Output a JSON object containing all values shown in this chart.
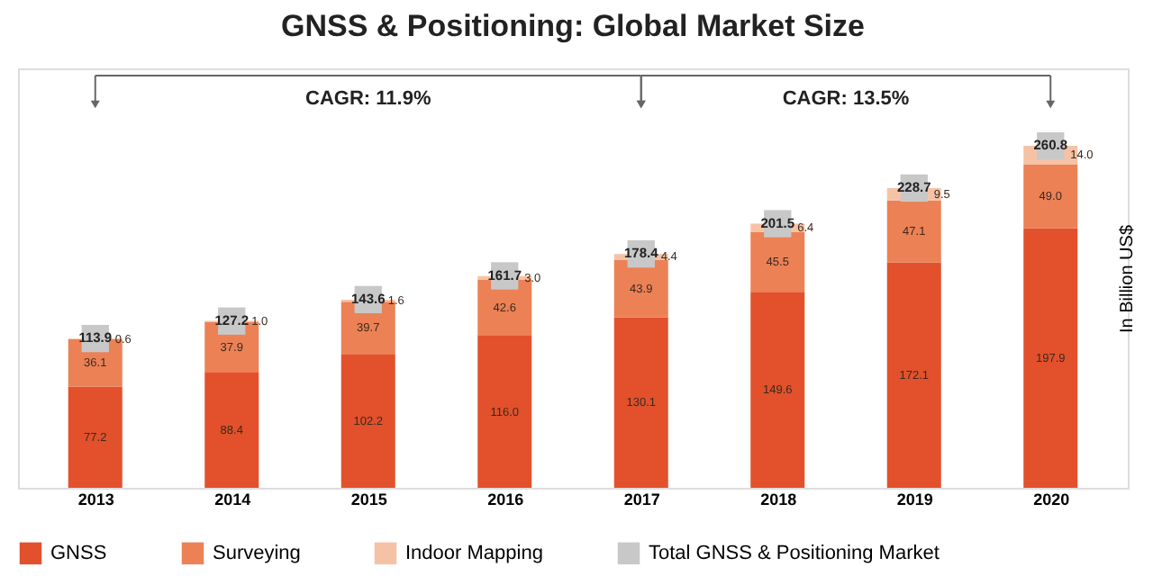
{
  "chart_data": {
    "type": "bar",
    "title": "GNSS & Positioning: Global Market Size",
    "ylabel": "In Billion US$",
    "categories": [
      "2013",
      "2014",
      "2015",
      "2016",
      "2017",
      "2018",
      "2019",
      "2020"
    ],
    "stacked": true,
    "legend": "bottom",
    "tick_labels": "x",
    "ylim": [
      0,
      320
    ],
    "series": [
      {
        "name": "GNSS",
        "color": "#e2512b",
        "values": [
          77.2,
          88.4,
          102.2,
          116.0,
          130.1,
          149.6,
          172.1,
          197.9
        ],
        "value_labels": [
          "77.2",
          "88.4",
          "102.2",
          "116.0",
          "130.1",
          "149.6",
          "172.1",
          "197.9"
        ]
      },
      {
        "name": "Surveying",
        "color": "#ec8155",
        "values": [
          36.1,
          37.9,
          39.7,
          42.6,
          43.9,
          45.5,
          47.1,
          49.0
        ],
        "value_labels": [
          "36.1",
          "37.9",
          "39.7",
          "42.6",
          "43.9",
          "45.5",
          "47.1",
          "49.0"
        ]
      },
      {
        "name": "Indoor Mapping",
        "color": "#f6c2a6",
        "values": [
          0.6,
          1.0,
          1.6,
          3.0,
          4.4,
          6.4,
          9.5,
          14.0
        ],
        "value_labels": [
          "0.6",
          "1.0",
          "1.6",
          "3.0",
          "4.4",
          "6.4",
          "9.5",
          "14.0"
        ]
      },
      {
        "name": "Total GNSS & Positioning Market",
        "color": "#c8c8c8",
        "type": "scatter",
        "marker": "square",
        "values": [
          113.9,
          127.2,
          143.6,
          161.7,
          178.4,
          201.5,
          228.7,
          260.8
        ],
        "value_labels": [
          null,
          null,
          null,
          null,
          null,
          null,
          null,
          null
        ]
      }
    ],
    "totals": [
      "113.9",
      "127.2",
      "143.6",
      "161.7",
      "178.4",
      "201.5",
      "228.7",
      "260.8"
    ],
    "annotations": [
      "CAGR: 11.9%",
      "CAGR: 13.5%"
    ]
  }
}
